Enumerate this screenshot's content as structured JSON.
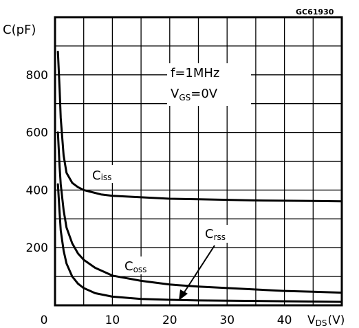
{
  "figure_code": "GC61930",
  "chart_data": {
    "type": "line",
    "ylabel": "C(pF)",
    "xlabel": {
      "main": "V",
      "sub": "DS",
      "unit": "(V)"
    },
    "annotation": {
      "line1": "f=1MHz",
      "line2_main": "V",
      "line2_sub": "GS",
      "line2_rest": "=0V"
    },
    "xlim": [
      0,
      50
    ],
    "ylim": [
      0,
      1000
    ],
    "x_ticks": [
      0,
      10,
      20,
      30,
      40
    ],
    "y_ticks": [
      200,
      400,
      600,
      800
    ],
    "grid": true,
    "series": [
      {
        "name": "Ciss",
        "label_main": "C",
        "label_sub": "iss",
        "x": [
          0.5,
          0.8,
          1,
          1.5,
          2,
          3,
          4,
          5,
          6,
          8,
          10,
          15,
          20,
          25,
          30,
          35,
          40,
          45,
          50
        ],
        "y": [
          880,
          750,
          650,
          520,
          460,
          425,
          410,
          400,
          395,
          385,
          380,
          375,
          370,
          368,
          366,
          364,
          363,
          362,
          361
        ]
      },
      {
        "name": "Coss",
        "label_main": "C",
        "label_sub": "oss",
        "x": [
          0.5,
          0.8,
          1,
          1.5,
          2,
          3,
          4,
          5,
          7,
          10,
          15,
          20,
          25,
          30,
          35,
          40,
          45,
          50
        ],
        "y": [
          600,
          480,
          420,
          330,
          270,
          215,
          180,
          158,
          130,
          103,
          85,
          72,
          65,
          60,
          55,
          50,
          47,
          44
        ]
      },
      {
        "name": "Crss",
        "label_main": "C",
        "label_sub": "rss",
        "x": [
          0.5,
          0.8,
          1,
          1.5,
          2,
          3,
          4,
          5,
          7,
          10,
          15,
          20,
          25,
          30,
          40,
          50
        ],
        "y": [
          420,
          320,
          260,
          190,
          145,
          100,
          75,
          60,
          42,
          30,
          22,
          19,
          17,
          16,
          14,
          12
        ]
      }
    ]
  }
}
